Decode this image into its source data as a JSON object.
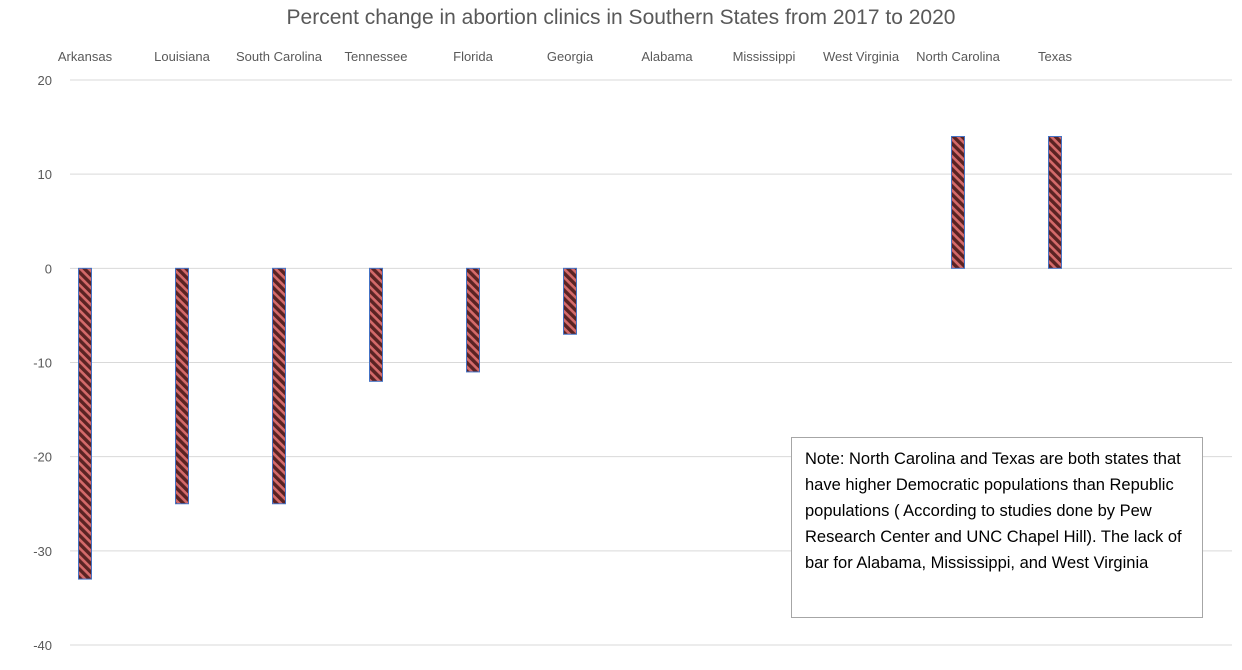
{
  "chart_data": {
    "type": "bar",
    "title": "Percent change in abortion clinics in Southern States from 2017 to 2020",
    "xlabel": "",
    "ylabel": "",
    "categories": [
      "Arkansas",
      "Louisiana",
      "South Carolina",
      "Tennessee",
      "Florida",
      "Georgia",
      "Alabama",
      "Mississippi",
      "West Virginia",
      "North Carolina",
      "Texas"
    ],
    "values": [
      -33,
      -25,
      -25,
      -12,
      -11,
      -7,
      0,
      0,
      0,
      14,
      14
    ],
    "ylim": [
      -40,
      20
    ],
    "yticks": [
      20,
      10,
      0,
      -10,
      -20,
      -30,
      -40
    ],
    "grid": true,
    "category_labels_position": "top",
    "bar_color": "#7b3a3a",
    "bar_stripe_color": "#d46a6a",
    "bar_border_color": "#4472c4"
  },
  "note": {
    "text": "Note: North Carolina and Texas are both states that have higher Democratic populations than Republic populations ( According to studies done by Pew Research Center and UNC Chapel Hill). The lack of bar for Alabama, Mississippi, and West Virginia"
  }
}
